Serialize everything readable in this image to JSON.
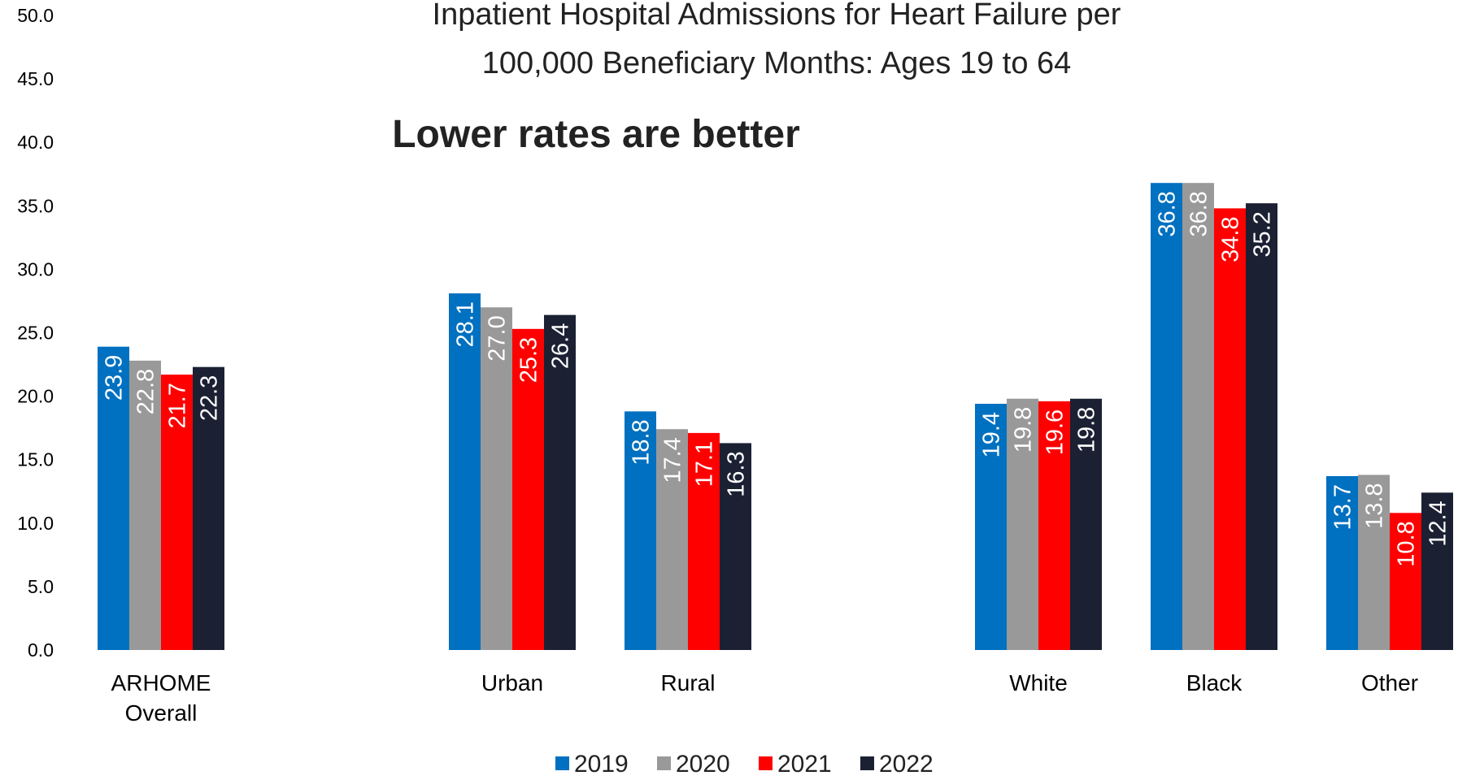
{
  "chart_data": {
    "type": "bar",
    "title_line1": "Inpatient Hospital Admissions for Heart Failure per",
    "title_line2": "100,000 Beneficiary Months: Ages 19 to 64",
    "subtitle": "Lower rates are better",
    "ylim": [
      0,
      50
    ],
    "yticks": [
      "0.0",
      "5.0",
      "10.0",
      "15.0",
      "20.0",
      "25.0",
      "30.0",
      "35.0",
      "40.0",
      "45.0",
      "50.0"
    ],
    "categories": [
      [
        "ARHOME",
        "Overall"
      ],
      [
        "Urban"
      ],
      [
        "Rural"
      ],
      [
        "White"
      ],
      [
        "Black"
      ],
      [
        "Other"
      ]
    ],
    "series": [
      {
        "name": "2019",
        "color": "#0070C0",
        "values": [
          23.9,
          28.1,
          18.8,
          19.4,
          36.8,
          13.7
        ]
      },
      {
        "name": "2020",
        "color": "#999999",
        "values": [
          22.8,
          27.0,
          17.4,
          19.8,
          36.8,
          13.8
        ]
      },
      {
        "name": "2021",
        "color": "#FF0000",
        "values": [
          21.7,
          25.3,
          17.1,
          19.6,
          34.8,
          10.8
        ]
      },
      {
        "name": "2022",
        "color": "#1B2133",
        "values": [
          22.3,
          26.4,
          16.3,
          19.8,
          35.2,
          12.4
        ]
      }
    ],
    "legend_position": "bottom",
    "grid": false
  }
}
